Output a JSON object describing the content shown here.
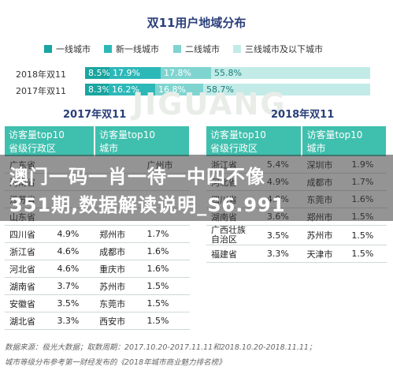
{
  "chart_data": {
    "title": "双11用户地域分布",
    "legend": [
      "一线城市",
      "新一线城市",
      "二线城市",
      "三线城市及以下城市"
    ],
    "colors": [
      "#1aa5a0",
      "#2db8b8",
      "#7fd4d0",
      "#c2ebe8"
    ],
    "series_rows": [
      {
        "label": "2018年双11",
        "values": [
          8.5,
          17.9,
          17.8,
          55.8
        ],
        "labels": [
          "8.5%",
          "17.9%",
          "17.8%",
          "55.8%"
        ]
      },
      {
        "label": "2017年双11",
        "values": [
          8.3,
          16.2,
          16.8,
          58.7
        ],
        "labels": [
          "8.3%",
          "16.2%",
          "16.8%",
          "58.7%"
        ]
      }
    ],
    "type": "bar"
  },
  "watermark": "JIGUANG",
  "table2017": {
    "title": "2017年双11",
    "headers": [
      [
        "访客量top10",
        "省级行政区"
      ],
      [
        "访客量top10",
        "城市"
      ]
    ],
    "rows": [
      [
        "广东省",
        "",
        "",
        "广州市",
        ""
      ],
      [
        "河南省",
        "",
        "",
        "",
        ""
      ],
      [
        "江苏省",
        "",
        "",
        "",
        ""
      ],
      [
        "山东省",
        "",
        "",
        "",
        ""
      ],
      [
        "四川省",
        "4.9%",
        "郑州市",
        "1.7%"
      ],
      [
        "浙江省",
        "4.6%",
        "成都市",
        "1.6%"
      ],
      [
        "河北省",
        "4.6%",
        "重庆市",
        "1.6%"
      ],
      [
        "湖南省",
        "3.7%",
        "苏州市",
        "1.5%"
      ],
      [
        "安徽省",
        "3.5%",
        "东莞市",
        "1.5%"
      ],
      [
        "湖北省",
        "3.3%",
        "西安市",
        "1.5%"
      ]
    ]
  },
  "table2018": {
    "title": "2018年双11",
    "headers": [
      [
        "访客量top10",
        "省级行政区"
      ],
      [
        "访客量top10",
        "城市"
      ]
    ],
    "rows": [
      [
        "浙江省",
        "5.4%",
        "深圳市",
        "1.9%"
      ],
      [
        "河北省",
        "4.9%",
        "成都市",
        "1.7%"
      ],
      [
        "四川省",
        "4.9%",
        "东莞市",
        "1.6%"
      ],
      [
        "湖南省",
        "3.6%",
        "郑州市",
        "1.5%"
      ],
      [
        "广西壮族\n自治区",
        "3.5%",
        "苏州市",
        "1.5%"
      ],
      [
        "福建省",
        "3.3%",
        "天津市",
        "1.5%"
      ]
    ]
  },
  "overlay": {
    "line1": "澳门一码一肖一待一中四不像",
    "line2": "351期,数据解读说明_S6.991"
  },
  "footnote": {
    "line1": "数据来源：极光大数据；取数周期：2017.10.20-2017.11.11和2018.10.20-2018.11.11；",
    "line2": "城市等级分布参考第一财经发布的《2018年城市商业魅力排名榜》"
  }
}
